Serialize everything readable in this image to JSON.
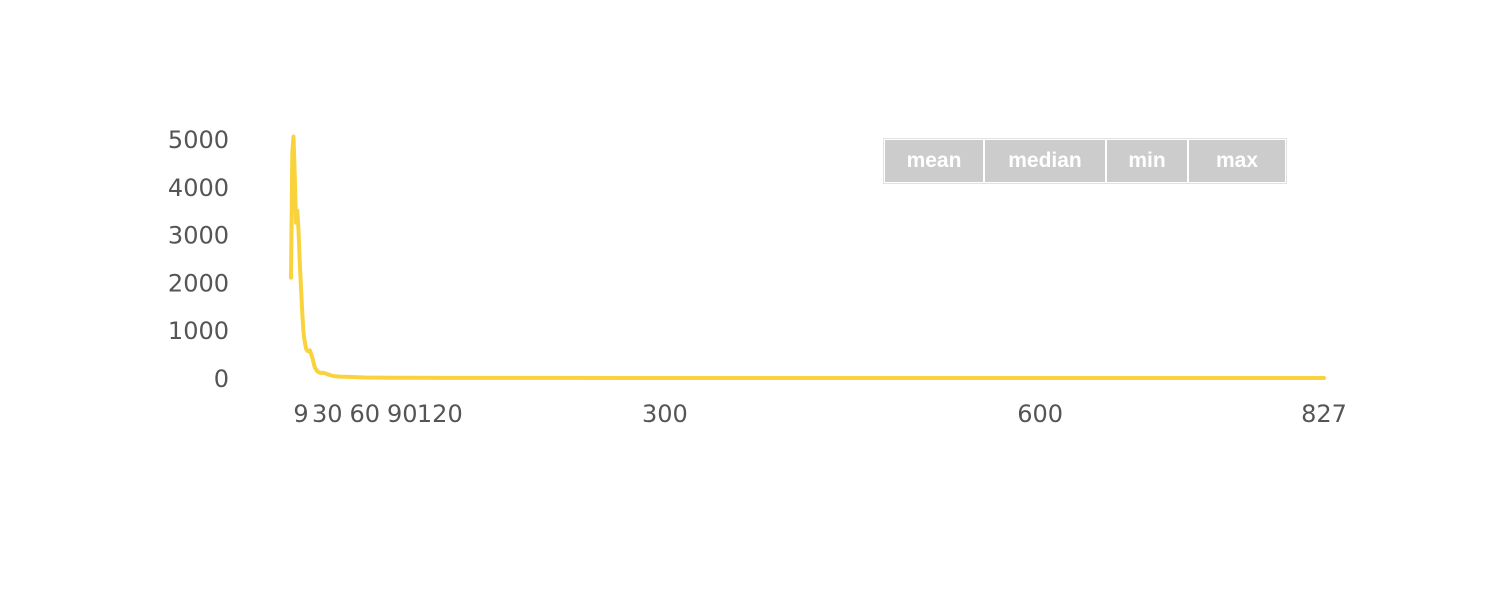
{
  "chart_data": {
    "type": "line",
    "title": "",
    "xlabel": "",
    "ylabel": "",
    "xlim": [
      1,
      827
    ],
    "ylim": [
      0,
      5000
    ],
    "x_ticks": [
      9,
      30,
      60,
      90,
      120,
      300,
      600,
      827
    ],
    "y_ticks": [
      0,
      1000,
      2000,
      3000,
      4000,
      5000
    ],
    "grid": false,
    "line_color": "#f9d23c",
    "series": [
      {
        "x": [
          1,
          2,
          3,
          4,
          5,
          6,
          7,
          8,
          9,
          10,
          11,
          12,
          13,
          14,
          15,
          16,
          18,
          20,
          22,
          24,
          25,
          26,
          28,
          30,
          35,
          40,
          45,
          50,
          55,
          60,
          70,
          80,
          90,
          100,
          120,
          150,
          200,
          300,
          400,
          500,
          600,
          700,
          800,
          827
        ],
        "values": [
          2100,
          4700,
          5050,
          4200,
          3250,
          3500,
          3100,
          2400,
          1900,
          1350,
          950,
          750,
          620,
          570,
          560,
          580,
          430,
          220,
          140,
          110,
          105,
          110,
          100,
          80,
          40,
          30,
          25,
          20,
          15,
          10,
          8,
          6,
          5,
          4,
          3,
          2,
          2,
          1,
          1,
          0,
          0,
          0,
          0,
          0
        ]
      }
    ]
  },
  "legend": {
    "buttons": [
      "mean",
      "median",
      "min",
      "max"
    ]
  }
}
